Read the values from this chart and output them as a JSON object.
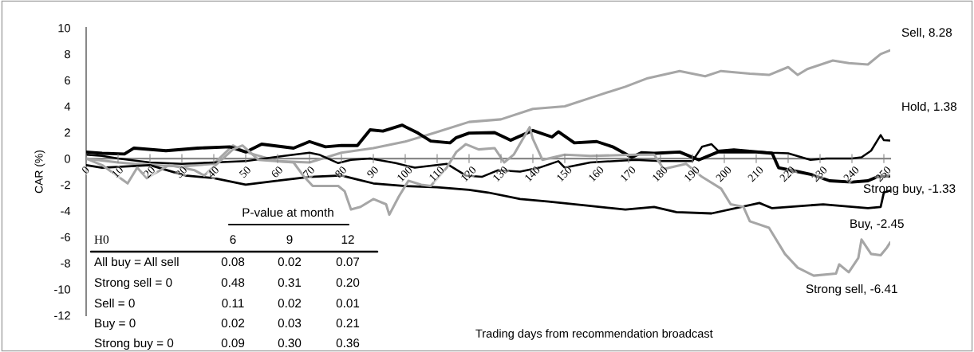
{
  "chart_data": {
    "type": "line",
    "xlabel": "Trading days from recommendation broadcast",
    "ylabel": "CAR (%)",
    "xlim": [
      0,
      252
    ],
    "xticks": [
      0,
      10,
      20,
      30,
      40,
      50,
      60,
      70,
      80,
      90,
      100,
      110,
      120,
      130,
      140,
      150,
      160,
      170,
      180,
      190,
      200,
      210,
      220,
      230,
      240,
      250
    ],
    "ylim": [
      -12,
      10
    ],
    "yticks": [
      -12,
      -10,
      -8,
      -6,
      -4,
      -2,
      0,
      2,
      4,
      6,
      8,
      10
    ],
    "grid": false,
    "marker": "none",
    "line_style": "solid",
    "series": [
      {
        "color": "#a6a6a6",
        "x": [
          0,
          10,
          20,
          30,
          40,
          46,
          50,
          60,
          70,
          80,
          90,
          100,
          109,
          120,
          130,
          140,
          150,
          160,
          169,
          176,
          186,
          194,
          199,
          208,
          214,
          220,
          223,
          226,
          234,
          239,
          245,
          249,
          252
        ],
        "values": [
          0,
          -0.3,
          -0.5,
          -0.6,
          -0.4,
          1.0,
          0.5,
          -0.2,
          -0.3,
          0.45,
          0.8,
          1.3,
          1.96,
          2.8,
          3.0,
          3.8,
          4.0,
          4.8,
          5.5,
          6.15,
          6.7,
          6.3,
          6.7,
          6.5,
          6.4,
          7.0,
          6.4,
          6.85,
          7.5,
          7.3,
          7.2,
          8.0,
          8.28
        ]
      },
      {
        "color": "#000000",
        "x": [
          0,
          5,
          10,
          20,
          30,
          40,
          50,
          56,
          62,
          70,
          73,
          79,
          83,
          89,
          97,
          103,
          113,
          119,
          124,
          129,
          136,
          142,
          148,
          150,
          158,
          172,
          180,
          190,
          193,
          196,
          198,
          203,
          215,
          220,
          227,
          232,
          240,
          243,
          246,
          249,
          250,
          252
        ],
        "values": [
          0.3,
          0.2,
          0.0,
          -0.3,
          -0.4,
          -0.3,
          -0.2,
          0.0,
          0.2,
          0.45,
          0.3,
          -0.35,
          -0.1,
          0.0,
          -0.35,
          -0.7,
          -0.4,
          -1.3,
          -1.4,
          -0.9,
          -1.0,
          -0.7,
          -0.2,
          -0.7,
          -0.3,
          -0.1,
          -0.2,
          -0.2,
          0.9,
          1.1,
          0.6,
          0.7,
          0.45,
          0.4,
          -0.1,
          0.0,
          0.0,
          0.1,
          0.6,
          1.8,
          1.4,
          1.38
        ]
      },
      {
        "color": "#000000",
        "x": [
          0,
          5,
          12,
          15,
          25,
          35,
          45,
          50,
          55,
          65,
          70,
          75,
          80,
          85,
          89,
          93,
          99,
          104,
          108,
          114,
          116,
          120,
          128,
          133,
          140,
          146,
          148,
          153,
          160,
          165,
          171,
          174,
          178,
          186,
          192,
          198,
          210,
          215,
          217,
          223,
          227,
          233,
          240,
          245,
          248,
          252
        ],
        "values": [
          0.5,
          0.4,
          0.35,
          0.8,
          0.6,
          0.8,
          0.9,
          0.5,
          1.1,
          0.8,
          1.3,
          0.9,
          1.0,
          1.0,
          2.2,
          2.1,
          2.56,
          1.95,
          1.34,
          1.2,
          1.6,
          1.95,
          1.99,
          1.4,
          2.15,
          1.65,
          2.05,
          1.2,
          1.3,
          0.9,
          0.1,
          0.45,
          0.4,
          0.5,
          -0.1,
          0.5,
          0.5,
          0.4,
          -0.7,
          -1.0,
          -1.2,
          -1.7,
          -1.8,
          -1.7,
          -1.4,
          -1.33
        ]
      },
      {
        "color": "#000000",
        "x": [
          0,
          5,
          20,
          31,
          40,
          50,
          60,
          70,
          80,
          85,
          90,
          100,
          110,
          120,
          126,
          136,
          145,
          157,
          169,
          178,
          185,
          196,
          211,
          215,
          231,
          245,
          249,
          250,
          252
        ],
        "values": [
          -0.5,
          -0.7,
          -0.5,
          -1.3,
          -1.5,
          -2.0,
          -1.7,
          -1.4,
          -1.3,
          -1.6,
          -1.9,
          -2.1,
          -2.2,
          -2.4,
          -2.6,
          -3.1,
          -3.3,
          -3.6,
          -3.9,
          -3.7,
          -4.1,
          -4.2,
          -3.4,
          -3.8,
          -3.5,
          -3.8,
          -3.7,
          -2.6,
          -2.45
        ]
      },
      {
        "color": "#a6a6a6",
        "x": [
          0,
          5,
          9,
          13,
          16,
          19,
          26,
          34,
          37,
          46,
          49,
          54,
          65,
          68,
          71,
          79,
          81,
          83,
          86,
          90,
          94,
          95,
          98,
          101,
          105,
          108,
          113,
          116,
          119,
          123,
          128,
          131,
          134,
          139,
          140,
          143,
          150,
          158,
          172,
          178,
          181,
          188,
          193,
          199,
          202,
          206,
          208,
          214,
          219,
          223,
          228,
          235,
          236,
          239,
          242,
          243,
          246,
          249,
          251,
          252
        ],
        "values": [
          0,
          -0.5,
          -1.2,
          -1.9,
          -0.7,
          -1.5,
          -0.5,
          -0.9,
          -1.3,
          0.7,
          1.0,
          -0.1,
          -0.3,
          -1.3,
          -2.1,
          -2.1,
          -2.5,
          -3.9,
          -3.7,
          -3.1,
          -3.5,
          -4.3,
          -2.9,
          -1.7,
          -2.0,
          -2.1,
          -0.7,
          0.5,
          1.1,
          0.7,
          0.8,
          -0.3,
          0.3,
          2.4,
          1.5,
          -0.1,
          0.3,
          0.2,
          0.3,
          0.3,
          -0.8,
          -0.4,
          -1.4,
          -2.3,
          -3.5,
          -3.7,
          -4.8,
          -5.3,
          -7.3,
          -8.35,
          -8.96,
          -8.8,
          -8.1,
          -8.7,
          -7.6,
          -6.2,
          -7.3,
          -7.4,
          -6.8,
          -6.41
        ]
      }
    ],
    "annotations": [
      "Sell, 8.28",
      "Hold, 1.38",
      "Strong buy, -1.33",
      "Buy, -2.45",
      "Strong sell, -6.41",
      "P-value at month",
      "H0",
      "6",
      "9",
      "12",
      "All buy = All sell",
      "0.08",
      "0.02",
      "0.07",
      "Strong sell = 0",
      "0.48",
      "0.31",
      "0.20",
      "Sell = 0",
      "0.11",
      "0.02",
      "0.01",
      "Buy = 0",
      "0.02",
      "0.03",
      "0.21",
      "Strong buy = 0",
      "0.09",
      "0.30",
      "0.36"
    ]
  }
}
